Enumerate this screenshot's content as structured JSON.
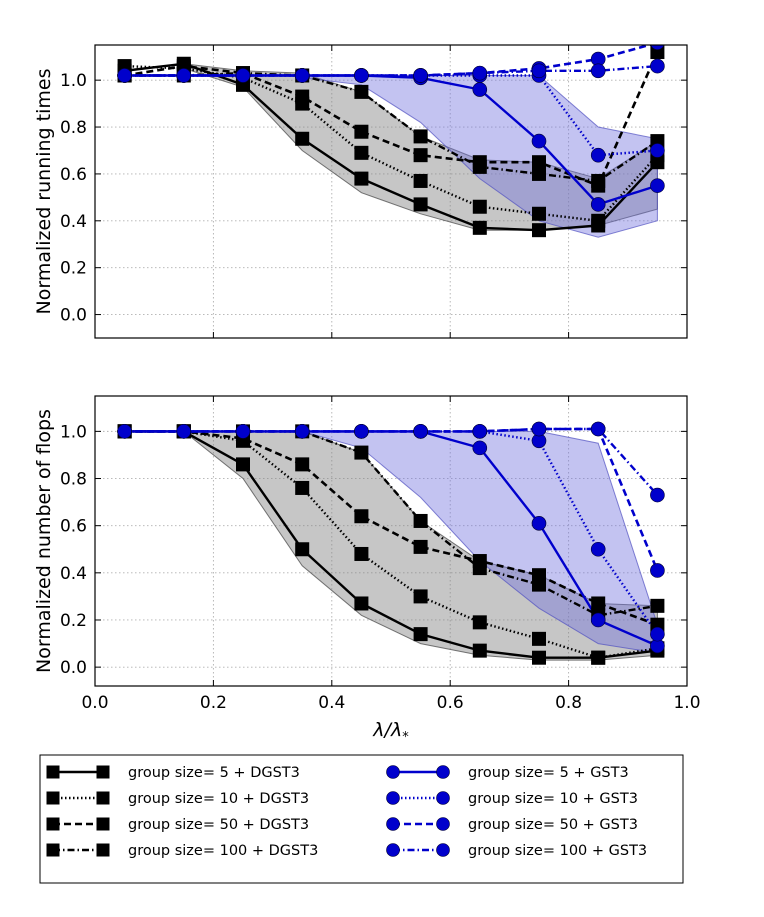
{
  "colors": {
    "dgst": "#000000",
    "gst": "#0000cc",
    "dgst_band": "#808080",
    "gst_band": "#7070dd",
    "grid": "#b0b0b0"
  },
  "chart_data": [
    {
      "type": "line",
      "ylabel": "Normalized running times",
      "xlabel": "",
      "xlim": [
        0.0,
        1.0
      ],
      "ylim": [
        -0.1,
        1.15
      ],
      "xticks": [
        "0.0",
        "0.2",
        "0.4",
        "0.6",
        "0.8",
        "1.0"
      ],
      "yticks": [
        "0.0",
        "0.2",
        "0.4",
        "0.6",
        "0.8",
        "1.0"
      ],
      "x": [
        0.05,
        0.15,
        0.25,
        0.35,
        0.45,
        0.55,
        0.65,
        0.75,
        0.85,
        0.95
      ],
      "series": [
        {
          "name": "group size= 5 + DGST3",
          "family": "dgst",
          "style": "solid",
          "values": [
            1.04,
            1.07,
            0.98,
            0.75,
            0.58,
            0.47,
            0.37,
            0.36,
            0.38,
            0.65
          ]
        },
        {
          "name": "group size= 10 + DGST3",
          "family": "dgst",
          "style": "dotted",
          "values": [
            1.06,
            1.05,
            1.01,
            0.9,
            0.69,
            0.57,
            0.46,
            0.43,
            0.4,
            0.68
          ]
        },
        {
          "name": "group size= 50 + DGST3",
          "family": "dgst",
          "style": "dashed",
          "values": [
            1.02,
            1.06,
            1.03,
            0.93,
            0.78,
            0.68,
            0.65,
            0.65,
            0.55,
            1.12
          ]
        },
        {
          "name": "group size= 100 + DGST3",
          "family": "dgst",
          "style": "dashdot",
          "values": [
            1.02,
            1.02,
            1.03,
            1.02,
            0.95,
            0.76,
            0.63,
            0.6,
            0.57,
            0.74
          ]
        },
        {
          "name": "group size= 5 + GST3",
          "family": "gst",
          "style": "solid",
          "values": [
            1.02,
            1.02,
            1.02,
            1.02,
            1.02,
            1.01,
            0.96,
            0.74,
            0.47,
            0.55
          ]
        },
        {
          "name": "group size= 10 + GST3",
          "family": "gst",
          "style": "dotted",
          "values": [
            1.02,
            1.02,
            1.02,
            1.02,
            1.02,
            1.02,
            1.02,
            1.02,
            0.68,
            0.7
          ]
        },
        {
          "name": "group size= 50 + GST3",
          "family": "gst",
          "style": "dashed",
          "values": [
            1.02,
            1.02,
            1.02,
            1.02,
            1.02,
            1.02,
            1.03,
            1.05,
            1.09,
            1.16
          ]
        },
        {
          "name": "group size= 100 + GST3",
          "family": "gst",
          "style": "dashdot",
          "values": [
            1.02,
            1.02,
            1.02,
            1.02,
            1.02,
            1.02,
            1.03,
            1.04,
            1.04,
            1.06
          ]
        }
      ],
      "bands": [
        {
          "family": "dgst",
          "x": [
            0.15,
            0.25,
            0.35,
            0.45,
            0.55,
            0.65,
            0.75,
            0.85,
            0.95
          ],
          "upper": [
            1.07,
            1.04,
            1.03,
            0.95,
            0.76,
            0.66,
            0.65,
            0.58,
            0.74
          ],
          "lower": [
            1.05,
            0.97,
            0.7,
            0.52,
            0.43,
            0.36,
            0.36,
            0.38,
            0.45
          ]
        },
        {
          "family": "gst",
          "x": [
            0.35,
            0.45,
            0.55,
            0.65,
            0.75,
            0.85,
            0.95
          ],
          "upper": [
            1.02,
            1.02,
            1.02,
            1.02,
            1.02,
            0.8,
            0.75
          ],
          "lower": [
            1.01,
            0.98,
            0.82,
            0.58,
            0.4,
            0.33,
            0.4
          ]
        }
      ]
    },
    {
      "type": "line",
      "ylabel": "Normalized number of flops",
      "xlabel": "λ/λ*",
      "xlabel_main": "λ/λ",
      "xlabel_sub": "*",
      "xlim": [
        0.0,
        1.0
      ],
      "ylim": [
        -0.08,
        1.15
      ],
      "xticks": [
        "0.0",
        "0.2",
        "0.4",
        "0.6",
        "0.8",
        "1.0"
      ],
      "yticks": [
        "0.0",
        "0.2",
        "0.4",
        "0.6",
        "0.8",
        "1.0"
      ],
      "x": [
        0.05,
        0.15,
        0.25,
        0.35,
        0.45,
        0.55,
        0.65,
        0.75,
        0.85,
        0.95
      ],
      "series": [
        {
          "name": "group size= 5 + DGST3",
          "family": "dgst",
          "style": "solid",
          "values": [
            1.0,
            1.0,
            0.86,
            0.5,
            0.27,
            0.14,
            0.07,
            0.04,
            0.04,
            0.07
          ]
        },
        {
          "name": "group size= 10 + DGST3",
          "family": "dgst",
          "style": "dotted",
          "values": [
            1.0,
            1.0,
            0.96,
            0.76,
            0.48,
            0.3,
            0.19,
            0.12,
            0.04,
            0.08
          ]
        },
        {
          "name": "group size= 50 + DGST3",
          "family": "dgst",
          "style": "dashed",
          "values": [
            1.0,
            1.0,
            0.97,
            0.86,
            0.64,
            0.51,
            0.45,
            0.39,
            0.27,
            0.18
          ]
        },
        {
          "name": "group size= 100 + DGST3",
          "family": "dgst",
          "style": "dashdot",
          "values": [
            1.0,
            1.0,
            1.0,
            1.0,
            0.91,
            0.62,
            0.42,
            0.35,
            0.22,
            0.26
          ]
        },
        {
          "name": "group size= 5 + GST3",
          "family": "gst",
          "style": "solid",
          "values": [
            1.0,
            1.0,
            1.0,
            1.0,
            1.0,
            1.0,
            0.93,
            0.61,
            0.2,
            0.09
          ]
        },
        {
          "name": "group size= 10 + GST3",
          "family": "gst",
          "style": "dotted",
          "values": [
            1.0,
            1.0,
            1.0,
            1.0,
            1.0,
            1.0,
            1.0,
            0.96,
            0.5,
            0.14
          ]
        },
        {
          "name": "group size= 50 + GST3",
          "family": "gst",
          "style": "dashed",
          "values": [
            1.0,
            1.0,
            1.0,
            1.0,
            1.0,
            1.0,
            1.0,
            1.01,
            1.01,
            0.41
          ]
        },
        {
          "name": "group size= 100 + GST3",
          "family": "gst",
          "style": "dashdot",
          "values": [
            1.0,
            1.0,
            1.0,
            1.0,
            1.0,
            1.0,
            1.0,
            1.01,
            1.01,
            0.73
          ]
        }
      ],
      "bands": [
        {
          "family": "dgst",
          "x": [
            0.15,
            0.25,
            0.35,
            0.45,
            0.55,
            0.65,
            0.75,
            0.85,
            0.95
          ],
          "upper": [
            1.0,
            1.0,
            1.0,
            0.91,
            0.62,
            0.45,
            0.39,
            0.27,
            0.26
          ],
          "lower": [
            1.0,
            0.8,
            0.43,
            0.22,
            0.1,
            0.05,
            0.03,
            0.03,
            0.05
          ]
        },
        {
          "family": "gst",
          "x": [
            0.35,
            0.45,
            0.55,
            0.65,
            0.75,
            0.85,
            0.95
          ],
          "upper": [
            1.0,
            1.0,
            1.0,
            1.0,
            1.0,
            0.95,
            0.18
          ],
          "lower": [
            1.0,
            0.93,
            0.72,
            0.45,
            0.25,
            0.1,
            0.06
          ]
        }
      ]
    }
  ],
  "legend": {
    "position": "bottom",
    "entries": [
      {
        "label": "group size= 5 + DGST3",
        "family": "dgst",
        "style": "solid"
      },
      {
        "label": "group size= 10 + DGST3",
        "family": "dgst",
        "style": "dotted"
      },
      {
        "label": "group size= 50 + DGST3",
        "family": "dgst",
        "style": "dashed"
      },
      {
        "label": "group size= 100 + DGST3",
        "family": "dgst",
        "style": "dashdot"
      },
      {
        "label": "group size= 5 + GST3",
        "family": "gst",
        "style": "solid"
      },
      {
        "label": "group size= 10 + GST3",
        "family": "gst",
        "style": "dotted"
      },
      {
        "label": "group size= 50 + GST3",
        "family": "gst",
        "style": "dashed"
      },
      {
        "label": "group size= 100 + GST3",
        "family": "gst",
        "style": "dashdot"
      }
    ]
  }
}
